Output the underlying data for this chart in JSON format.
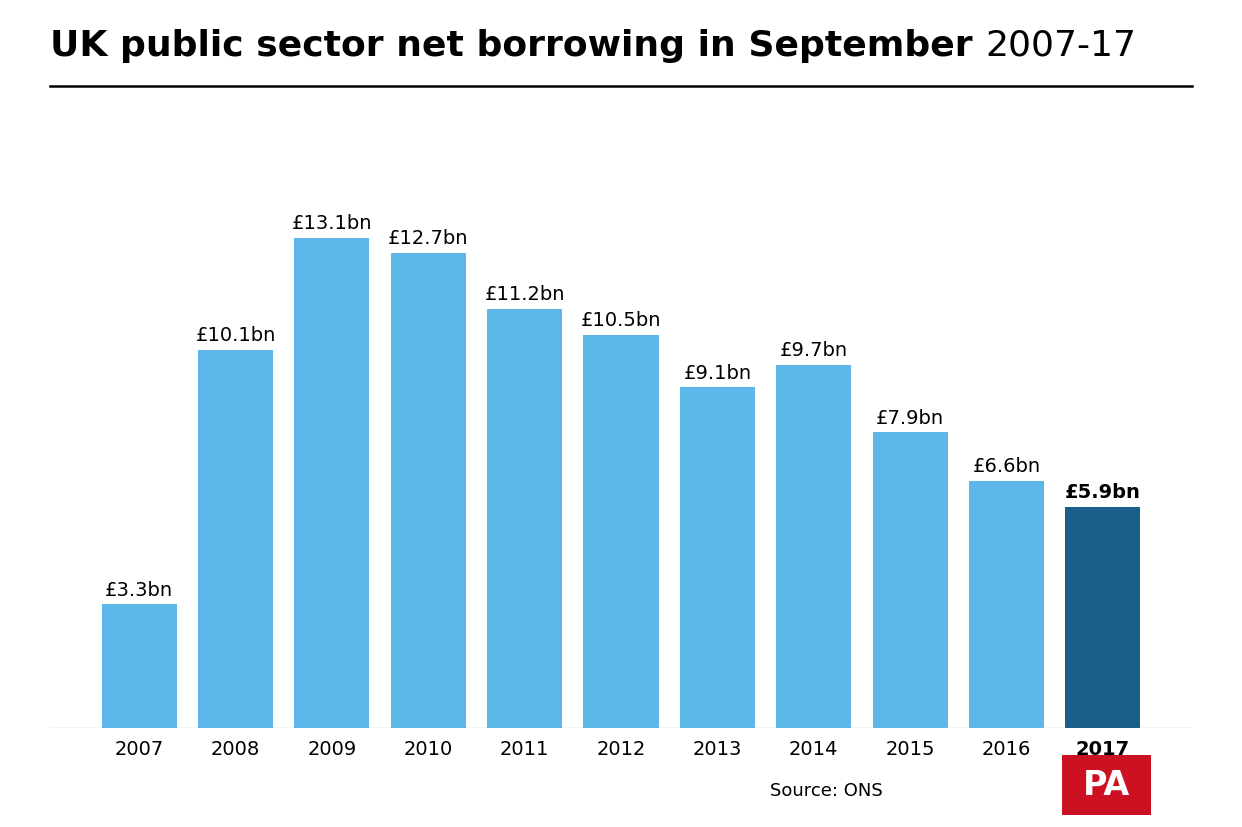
{
  "years": [
    "2007",
    "2008",
    "2009",
    "2010",
    "2011",
    "2012",
    "2013",
    "2014",
    "2015",
    "2016",
    "2017"
  ],
  "values": [
    3.3,
    10.1,
    13.1,
    12.7,
    11.2,
    10.5,
    9.1,
    9.7,
    7.9,
    6.6,
    5.9
  ],
  "labels": [
    "£3.3bn",
    "£10.1bn",
    "£13.1bn",
    "£12.7bn",
    "£11.2bn",
    "£10.5bn",
    "£9.1bn",
    "£9.7bn",
    "£7.9bn",
    "£6.6bn",
    "£5.9bn"
  ],
  "bar_colors": [
    "#5bb8e8",
    "#5bb8e8",
    "#5bb8e8",
    "#5bb8e8",
    "#5bb8e8",
    "#5bb8e8",
    "#5bb8e8",
    "#5bb8e8",
    "#5bb8e8",
    "#5bb8e8",
    "#1a5f8a"
  ],
  "title_bold": "UK public sector net borrowing in September ",
  "title_normal": "2007-17",
  "source_text": "Source: ONS",
  "background_color": "#ffffff",
  "ylim": [
    0,
    15.5
  ],
  "label_fontsize": 14,
  "tick_fontsize": 14,
  "pa_box_color": "#cc1122",
  "pa_text_color": "#ffffff",
  "title_fontsize": 26
}
